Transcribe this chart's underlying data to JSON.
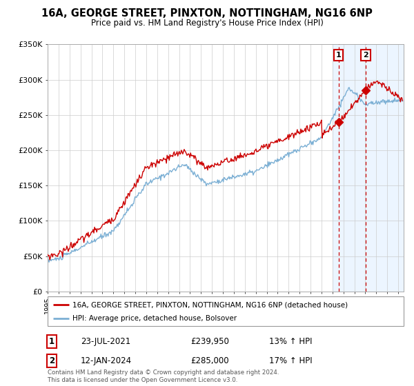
{
  "title": "16A, GEORGE STREET, PINXTON, NOTTINGHAM, NG16 6NP",
  "subtitle": "Price paid vs. HM Land Registry's House Price Index (HPI)",
  "ylim": [
    0,
    350000
  ],
  "xlim_start": 1995.0,
  "xlim_end": 2027.5,
  "yticks": [
    0,
    50000,
    100000,
    150000,
    200000,
    250000,
    300000,
    350000
  ],
  "ytick_labels": [
    "£0",
    "£50K",
    "£100K",
    "£150K",
    "£200K",
    "£250K",
    "£300K",
    "£350K"
  ],
  "sale1_date": 2021.55,
  "sale1_price": 239950,
  "sale1_label": "1",
  "sale1_date_str": "23-JUL-2021",
  "sale1_price_str": "£239,950",
  "sale1_hpi_str": "13% ↑ HPI",
  "sale2_date": 2024.04,
  "sale2_price": 285000,
  "sale2_label": "2",
  "sale2_date_str": "12-JAN-2024",
  "sale2_price_str": "£285,000",
  "sale2_hpi_str": "17% ↑ HPI",
  "red_color": "#cc0000",
  "blue_color": "#7bafd4",
  "legend_label_red": "16A, GEORGE STREET, PINXTON, NOTTINGHAM, NG16 6NP (detached house)",
  "legend_label_blue": "HPI: Average price, detached house, Bolsover",
  "footnote": "Contains HM Land Registry data © Crown copyright and database right 2024.\nThis data is licensed under the Open Government Licence v3.0.",
  "background_color": "#ffffff",
  "plot_bg_color": "#ffffff",
  "grid_color": "#cccccc",
  "shade_color": "#ddeeff",
  "shade_start": 2021.0
}
